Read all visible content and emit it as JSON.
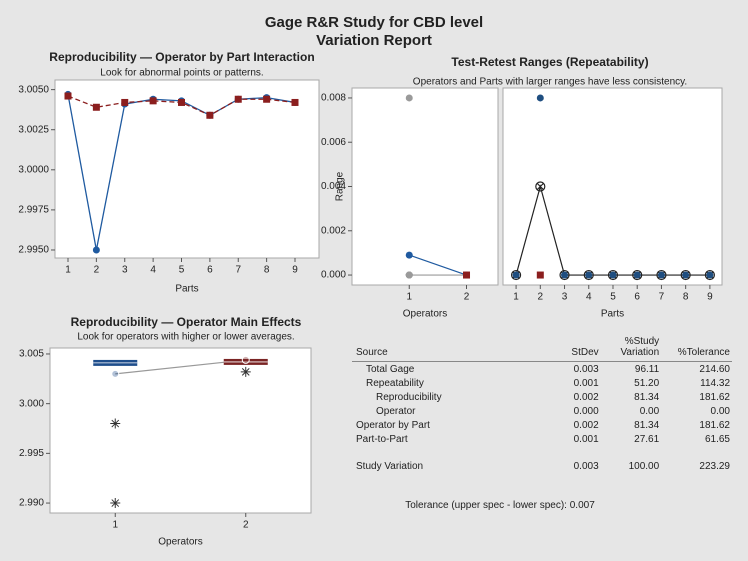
{
  "header": {
    "title": "Gage R&R Study for CBD level",
    "subtitle": "Variation Report"
  },
  "chart_data": [
    {
      "type": "line",
      "title": "Reproducibility — Operator by Part Interaction",
      "subtitle": "Look for abnormal points or patterns.",
      "x_label": "Parts",
      "categories": [
        "1",
        "2",
        "3",
        "4",
        "5",
        "6",
        "7",
        "8",
        "9"
      ],
      "series": [
        {
          "color": "#1f5aa0",
          "marker": "circle",
          "dash": false,
          "values": [
            3.0047,
            2.995,
            3.0041,
            3.0044,
            3.0043,
            3.0034,
            3.0044,
            3.0045,
            3.0042
          ]
        },
        {
          "color": "#8b1e1e",
          "marker": "square",
          "dash": true,
          "values": [
            3.0046,
            3.0039,
            3.0042,
            3.0043,
            3.0042,
            3.0034,
            3.0044,
            3.0044,
            3.0042
          ]
        }
      ],
      "ylim": [
        2.9945,
        3.0056
      ],
      "yticks": [
        {
          "value": 2.995,
          "label": "2.9950"
        },
        {
          "value": 2.9975,
          "label": "2.9975"
        },
        {
          "value": 3.0,
          "label": "3.0000"
        },
        {
          "value": 3.0025,
          "label": "3.0025"
        },
        {
          "value": 3.005,
          "label": "3.0050"
        }
      ]
    },
    {
      "type": "scatter",
      "title": "Test-Retest Ranges (Repeatability)",
      "subtitle": "Operators and Parts with larger ranges have less consistency.",
      "y_label": "Range",
      "x_label": "Operators",
      "xlim": [
        0,
        2.55
      ],
      "xticks": [
        1,
        2
      ],
      "ylim": [
        -0.00045,
        0.00845
      ],
      "yticks": [
        {
          "value": 0,
          "label": "0.000"
        },
        {
          "value": 0.002,
          "label": "0.002"
        },
        {
          "value": 0.004,
          "label": "0.004"
        },
        {
          "value": 0.006,
          "label": "0.006"
        },
        {
          "value": 0.008,
          "label": "0.008"
        }
      ],
      "series": [
        {
          "color": "#9a9a9a",
          "marker": "circle",
          "line": false,
          "x": [
            1,
            1,
            1,
            1
          ],
          "values": [
            0.008,
            0,
            0,
            0
          ]
        },
        {
          "color": "#1f5aa0",
          "marker": "circle",
          "line": true,
          "x": [
            1,
            2
          ],
          "values": [
            0.0009,
            0
          ]
        },
        {
          "color": "#9a9a9a",
          "marker": "circle",
          "line": true,
          "x": [
            1,
            2
          ],
          "values": [
            0,
            0
          ]
        },
        {
          "color": "#8b1e1e",
          "marker": "square",
          "line": false,
          "x": [
            2
          ],
          "values": [
            0
          ]
        }
      ]
    },
    {
      "type": "scatter",
      "x_label": "Parts",
      "xlim": [
        0.46,
        9.5
      ],
      "xticks": [
        1,
        2,
        3,
        4,
        5,
        6,
        7,
        8,
        9
      ],
      "ylim": [
        -0.00045,
        0.00845
      ],
      "series": [
        {
          "color": "#222222",
          "marker": "circle-x",
          "line": true,
          "x": [
            1,
            2,
            3,
            4,
            5,
            6,
            7,
            8,
            9
          ],
          "values": [
            0,
            0.004,
            0,
            0,
            0,
            0,
            0,
            0,
            0
          ]
        },
        {
          "color": "#1f4e80",
          "marker": "circle",
          "line": false,
          "x": [
            1,
            2,
            3,
            4,
            5,
            6,
            7,
            8,
            9
          ],
          "values": [
            0,
            0.008,
            0,
            0,
            0,
            0,
            0,
            0,
            0
          ]
        },
        {
          "color": "#8b1e1e",
          "marker": "square",
          "line": false,
          "x": [
            2
          ],
          "values": [
            0
          ]
        }
      ]
    },
    {
      "type": "box",
      "title": "Reproducibility — Operator Main Effects",
      "subtitle": "Look for operators with higher or lower averages.",
      "x_label": "Operators",
      "categories": [
        "1",
        "2"
      ],
      "boxes": [
        {
          "color": "#1f4e8c",
          "q1": 3.0038,
          "median": 3.0041,
          "q3": 3.0044,
          "outliers": [
            2.998,
            2.99
          ],
          "mean": 3.003
        },
        {
          "color": "#7a2424",
          "q1": 3.0039,
          "median": 3.0042,
          "q3": 3.0045,
          "outliers": [
            3.0032
          ],
          "mean": 3.0044
        }
      ],
      "ylim": [
        2.989,
        3.0056
      ],
      "yticks": [
        {
          "value": 2.99,
          "label": "2.990"
        },
        2.995,
        {
          "value": 3.0,
          "label": "3.000"
        },
        3.005
      ]
    }
  ],
  "table": {
    "header": [
      "Source",
      "StDev",
      "%Study Variation",
      "%Tolerance"
    ],
    "rows": [
      [
        "Total Gage",
        "0.003",
        "96.11",
        "214.60"
      ],
      [
        "Repeatability",
        "0.001",
        "51.20",
        "114.32"
      ],
      [
        "Reproducibility",
        "0.002",
        "81.34",
        "181.62"
      ],
      [
        "Operator",
        "0.000",
        "0.00",
        "0.00"
      ],
      [
        "Operator by Part",
        "0.002",
        "81.34",
        "181.62"
      ],
      [
        "Part-to-Part",
        "0.001",
        "27.61",
        "61.65"
      ],
      [
        "Study Variation",
        "0.003",
        "100.00",
        "223.29"
      ]
    ],
    "footer": "Tolerance (upper spec - lower spec): 0.007"
  }
}
